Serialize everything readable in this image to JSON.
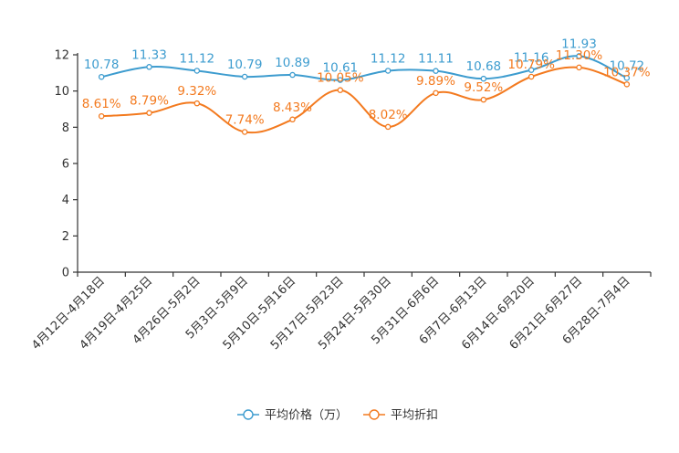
{
  "chart_data": {
    "type": "line",
    "title": "",
    "xlabel": "",
    "ylabel": "",
    "ylim": [
      0,
      12
    ],
    "yticks": [
      0,
      2,
      4,
      6,
      8,
      10,
      12
    ],
    "categories": [
      "4月12日-4月18日",
      "4月19日-4月25日",
      "4月26日-5月2日",
      "5月3日-5月9日",
      "5月10日-5月16日",
      "5月17日-5月23日",
      "5月24日-5月30日",
      "5月31日-6月6日",
      "6月7日-6月13日",
      "6月14日-6月20日",
      "6月21日-6月27日",
      "6月28日-7月4日"
    ],
    "series": [
      {
        "name": "平均价格（万）",
        "color": "#3d9ccf",
        "values": [
          10.78,
          11.33,
          11.12,
          10.79,
          10.89,
          10.61,
          11.12,
          11.11,
          10.68,
          11.16,
          11.93,
          10.72
        ],
        "labels": [
          "10.78",
          "11.33",
          "11.12",
          "10.79",
          "10.89",
          "10.61",
          "11.12",
          "11.11",
          "10.68",
          "11.16",
          "11.93",
          "10.72"
        ]
      },
      {
        "name": "平均折扣",
        "color": "#f37a1f",
        "values": [
          8.61,
          8.79,
          9.32,
          7.74,
          8.43,
          10.05,
          8.02,
          9.89,
          9.52,
          10.79,
          11.3,
          10.37
        ],
        "labels": [
          "8.61%",
          "8.79%",
          "9.32%",
          "7.74%",
          "8.43%",
          "10.05%",
          "8.02%",
          "9.89%",
          "9.52%",
          "10.79%",
          "11.30%",
          "10.37%"
        ]
      }
    ],
    "legend": {
      "position": "bottom-center"
    },
    "grid": false
  }
}
